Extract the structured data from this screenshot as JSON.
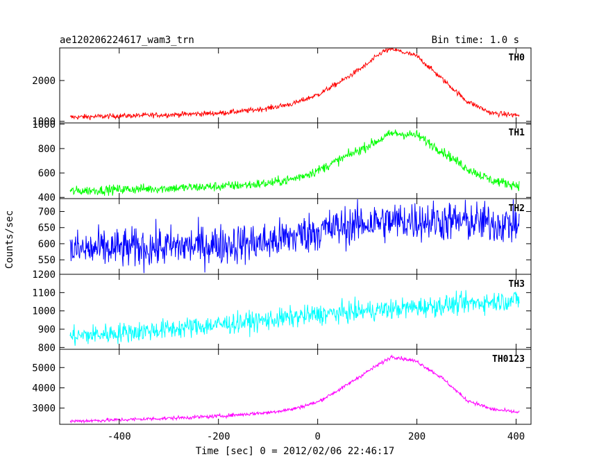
{
  "header": {
    "title": "ae120206224617_wam3_trn",
    "bin_time": "Bin time: 1.0 s"
  },
  "axes": {
    "xlabel": "Time [sec] 0 = 2012/02/06 22:46:17",
    "ylabel": "Counts/sec"
  },
  "chart_data": {
    "type": "line",
    "title": "ae120206224617_wam3_trn",
    "xlabel": "Time [sec] 0 = 2012/02/06 22:46:17",
    "ylabel": "Counts/sec",
    "bin_time_s": 1.0,
    "xlim": [
      -520,
      430
    ],
    "xticks": [
      -400,
      -200,
      0,
      200,
      400
    ],
    "grid": false,
    "panels": [
      {
        "name": "TH0",
        "color": "#ff0000",
        "ylim": [
          960,
          2800
        ],
        "yticks": [
          1000,
          2000
        ],
        "x": [
          -500,
          -400,
          -300,
          -200,
          -150,
          -100,
          -50,
          0,
          50,
          100,
          130,
          150,
          170,
          200,
          250,
          300,
          350,
          400
        ],
        "values": [
          1100,
          1130,
          1160,
          1200,
          1250,
          1320,
          1430,
          1650,
          2000,
          2400,
          2700,
          2780,
          2700,
          2600,
          2050,
          1500,
          1200,
          1150
        ],
        "noise": 45
      },
      {
        "name": "TH1",
        "color": "#00ff00",
        "ylim": [
          390,
          1010
        ],
        "yticks": [
          400,
          600,
          800,
          1000
        ],
        "x": [
          -500,
          -400,
          -300,
          -200,
          -150,
          -100,
          -50,
          0,
          50,
          100,
          150,
          200,
          250,
          300,
          350,
          400
        ],
        "values": [
          450,
          465,
          475,
          490,
          500,
          515,
          550,
          620,
          720,
          820,
          925,
          910,
          780,
          640,
          540,
          500
        ],
        "noise": 28
      },
      {
        "name": "TH2",
        "color": "#0000ff",
        "ylim": [
          505,
          740
        ],
        "yticks": [
          550,
          600,
          650,
          700
        ],
        "x": [
          -500,
          -300,
          -100,
          0,
          100,
          200,
          300,
          400
        ],
        "values": [
          580,
          590,
          605,
          640,
          665,
          672,
          668,
          660
        ],
        "noise": 45
      },
      {
        "name": "TH3",
        "color": "#00ffff",
        "ylim": [
          790,
          1200
        ],
        "yticks": [
          800,
          900,
          1000,
          1100,
          1200
        ],
        "x": [
          -500,
          -300,
          -100,
          0,
          100,
          200,
          300,
          400
        ],
        "values": [
          860,
          900,
          950,
          980,
          1000,
          1020,
          1040,
          1060
        ],
        "noise": 40
      },
      {
        "name": "TH0123",
        "color": "#ff00ff",
        "ylim": [
          2200,
          5900
        ],
        "yticks": [
          3000,
          4000,
          5000
        ],
        "x": [
          -500,
          -400,
          -300,
          -200,
          -100,
          -50,
          0,
          50,
          100,
          150,
          200,
          250,
          300,
          350,
          400
        ],
        "values": [
          2350,
          2420,
          2500,
          2600,
          2780,
          2950,
          3300,
          4000,
          4800,
          5550,
          5300,
          4500,
          3400,
          2950,
          2800
        ],
        "noise": 65
      }
    ]
  }
}
